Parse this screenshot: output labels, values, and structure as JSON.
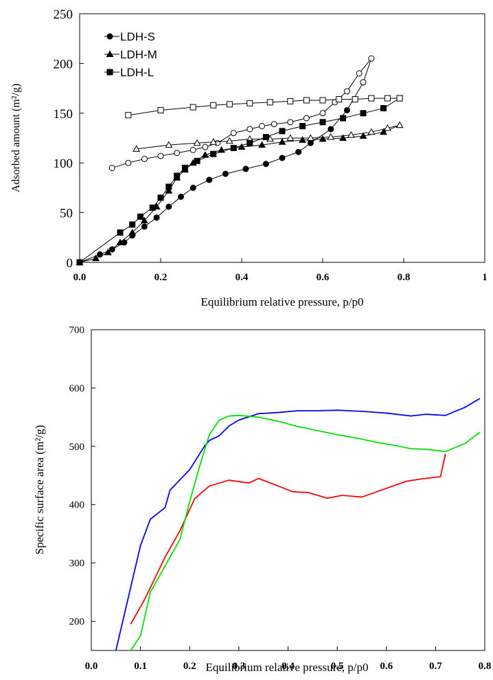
{
  "chart_data": [
    {
      "type": "scatter",
      "title": "",
      "xlabel": "Equilibrium relative pressure, p/p0",
      "ylabel": "Adsorbed amount (m²/g)",
      "xlim": [
        0,
        1
      ],
      "ylim": [
        0,
        250
      ],
      "x_ticks": [
        "0.0",
        "0.2",
        "0.4",
        "0.6",
        "0.8",
        "1"
      ],
      "x_tick_values": [
        0,
        0.2,
        0.4,
        0.6,
        0.8,
        1.0
      ],
      "y_ticks": [
        "0",
        "50",
        "100",
        "150",
        "200",
        "250"
      ],
      "y_tick_values": [
        0,
        50,
        100,
        150,
        200,
        250
      ],
      "grid": false,
      "legend_position": "top-left",
      "series": [
        {
          "name": "LDH-S",
          "marker": "circle",
          "filled": true,
          "x": [
            0.0,
            0.05,
            0.08,
            0.11,
            0.13,
            0.16,
            0.19,
            0.22,
            0.25,
            0.28,
            0.32,
            0.36,
            0.41,
            0.46,
            0.5,
            0.54,
            0.57,
            0.62,
            0.66,
            0.7
          ],
          "y": [
            0,
            8,
            13,
            20,
            27,
            36,
            45,
            56,
            66,
            75,
            83,
            89,
            94,
            99,
            105,
            111,
            120,
            134,
            153,
            181
          ]
        },
        {
          "name": "",
          "marker": "circle",
          "filled": false,
          "x": [
            0.7,
            0.72,
            0.69,
            0.66,
            0.63,
            0.6,
            0.56,
            0.52,
            0.48,
            0.45,
            0.42,
            0.38,
            0.34,
            0.31,
            0.28,
            0.24,
            0.2,
            0.16,
            0.12,
            0.08
          ],
          "y": [
            181,
            205,
            190,
            172,
            161,
            150,
            145,
            141,
            139,
            137,
            134,
            130,
            120,
            116,
            113,
            110,
            107,
            104,
            100,
            95
          ]
        },
        {
          "name": "LDH-M",
          "marker": "triangle",
          "filled": true,
          "x": [
            0.0,
            0.04,
            0.07,
            0.1,
            0.13,
            0.16,
            0.19,
            0.22,
            0.24,
            0.26,
            0.28,
            0.31,
            0.35,
            0.4,
            0.45,
            0.5,
            0.55,
            0.6,
            0.65,
            0.7,
            0.75,
            0.79
          ],
          "y": [
            0,
            4,
            10,
            20,
            30,
            42,
            56,
            72,
            85,
            93,
            100,
            108,
            113,
            116,
            118,
            121,
            123,
            124,
            125,
            127,
            131,
            138
          ]
        },
        {
          "name": "",
          "marker": "triangle",
          "filled": false,
          "x": [
            0.79,
            0.76,
            0.72,
            0.67,
            0.62,
            0.57,
            0.52,
            0.47,
            0.42,
            0.37,
            0.33,
            0.29,
            0.22,
            0.14
          ],
          "y": [
            138,
            135,
            131,
            128,
            126,
            125,
            125,
            124,
            124,
            122,
            121,
            120,
            118,
            114
          ]
        },
        {
          "name": "LDH-L",
          "marker": "square",
          "filled": true,
          "x": [
            0.0,
            0.1,
            0.13,
            0.15,
            0.18,
            0.2,
            0.22,
            0.24,
            0.26,
            0.29,
            0.33,
            0.38,
            0.42,
            0.46,
            0.5,
            0.55,
            0.6,
            0.65,
            0.7,
            0.75,
            0.79
          ],
          "y": [
            0,
            30,
            38,
            46,
            55,
            65,
            76,
            87,
            95,
            102,
            109,
            115,
            120,
            126,
            132,
            137,
            141,
            145,
            150,
            155,
            165
          ]
        },
        {
          "name": "",
          "marker": "square",
          "filled": false,
          "x": [
            0.79,
            0.76,
            0.72,
            0.68,
            0.64,
            0.6,
            0.56,
            0.52,
            0.47,
            0.42,
            0.37,
            0.33,
            0.28,
            0.2,
            0.12
          ],
          "y": [
            165,
            165,
            165,
            164,
            164,
            163,
            163,
            162,
            161,
            160,
            159,
            158,
            156,
            153,
            148
          ]
        }
      ]
    },
    {
      "type": "line",
      "title": "",
      "xlabel": "Equilibrium relative pressure, p/p0",
      "ylabel": "Specific surface area (m²/g)",
      "xlim": [
        0,
        0.8
      ],
      "ylim": [
        150,
        700
      ],
      "x_ticks": [
        "0.0",
        "0.1",
        "0.2",
        "0.3",
        "0.4",
        "0.5",
        "0.6",
        "0.7",
        "0.8"
      ],
      "x_tick_values": [
        0,
        0.1,
        0.2,
        0.3,
        0.4,
        0.5,
        0.6,
        0.7,
        0.8
      ],
      "y_ticks": [
        "200",
        "300",
        "400",
        "500",
        "600",
        "700"
      ],
      "y_tick_values": [
        200,
        300,
        400,
        500,
        600,
        700
      ],
      "grid": false,
      "series": [
        {
          "name": "",
          "color": "#0000ff",
          "x": [
            0.05,
            0.1,
            0.12,
            0.15,
            0.16,
            0.2,
            0.23,
            0.24,
            0.26,
            0.28,
            0.3,
            0.34,
            0.38,
            0.42,
            0.46,
            0.5,
            0.55,
            0.6,
            0.65,
            0.68,
            0.72,
            0.76,
            0.79
          ],
          "y": [
            150,
            330,
            375,
            395,
            425,
            460,
            500,
            510,
            518,
            535,
            545,
            556,
            558,
            561,
            561,
            562,
            560,
            557,
            552,
            555,
            553,
            567,
            582
          ]
        },
        {
          "name": "",
          "color": "#ff0000",
          "x": [
            0.08,
            0.11,
            0.13,
            0.15,
            0.18,
            0.21,
            0.24,
            0.28,
            0.32,
            0.34,
            0.38,
            0.41,
            0.44,
            0.48,
            0.51,
            0.55,
            0.6,
            0.64,
            0.67,
            0.71,
            0.72
          ],
          "y": [
            195,
            240,
            275,
            310,
            355,
            410,
            432,
            442,
            437,
            445,
            432,
            422,
            421,
            411,
            416,
            413,
            428,
            440,
            444,
            448,
            487
          ]
        },
        {
          "name": "",
          "color": "#00e000",
          "x": [
            0.08,
            0.1,
            0.12,
            0.15,
            0.18,
            0.2,
            0.22,
            0.24,
            0.26,
            0.28,
            0.3,
            0.34,
            0.38,
            0.42,
            0.46,
            0.5,
            0.54,
            0.58,
            0.62,
            0.65,
            0.68,
            0.72,
            0.76,
            0.79
          ],
          "y": [
            150,
            175,
            250,
            295,
            340,
            405,
            465,
            520,
            545,
            552,
            553,
            550,
            543,
            534,
            527,
            520,
            514,
            507,
            501,
            496,
            495,
            491,
            505,
            524
          ]
        }
      ]
    }
  ]
}
